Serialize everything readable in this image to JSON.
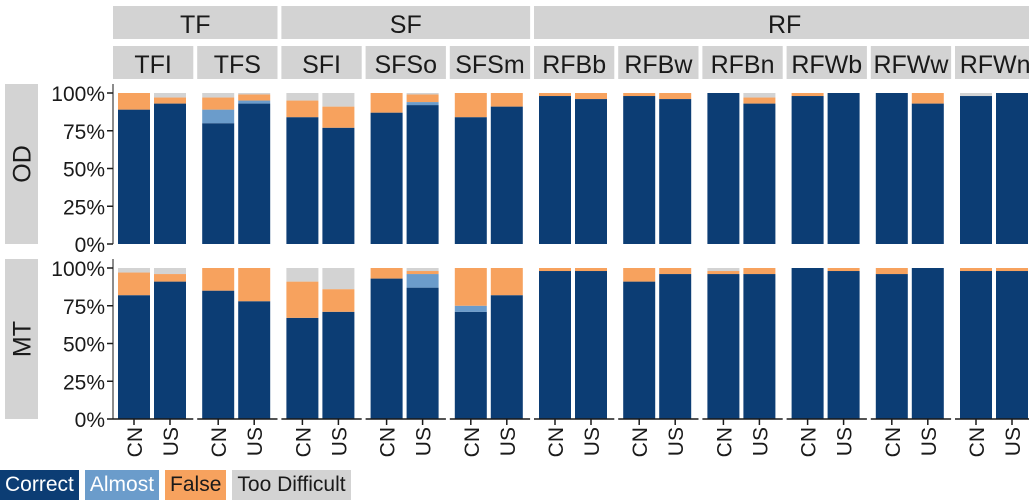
{
  "chart_data": {
    "type": "bar",
    "stacked": true,
    "facet_groups": [
      "TF",
      "SF",
      "RF"
    ],
    "panels": [
      "TFI",
      "TFS",
      "SFI",
      "SFSo",
      "SFSm",
      "RFBb",
      "RFBw",
      "RFBn",
      "RFWb",
      "RFWw",
      "RFWn"
    ],
    "panel_groups": [
      "TF",
      "TF",
      "SF",
      "SF",
      "SF",
      "RF",
      "RF",
      "RF",
      "RF",
      "RF",
      "RF"
    ],
    "rows": [
      "OD",
      "MT"
    ],
    "categories": [
      "CN",
      "US"
    ],
    "y_ticks": [
      "0%",
      "25%",
      "50%",
      "75%",
      "100%"
    ],
    "ylim": [
      0,
      100
    ],
    "series": [
      {
        "name": "Correct",
        "color": "#0c3d74"
      },
      {
        "name": "Almost",
        "color": "#6b9ccb"
      },
      {
        "name": "False",
        "color": "#f7a25e"
      },
      {
        "name": "Too Difficult",
        "color": "#d3d3d3"
      }
    ],
    "values": {
      "OD": {
        "TFI": [
          [
            89,
            0,
            11,
            0
          ],
          [
            93,
            0,
            4,
            3
          ]
        ],
        "TFS": [
          [
            80,
            9,
            8,
            3
          ],
          [
            93,
            2,
            4,
            1
          ]
        ],
        "SFI": [
          [
            84,
            0,
            11,
            5
          ],
          [
            77,
            0,
            14,
            9
          ]
        ],
        "SFSo": [
          [
            87,
            0,
            13,
            0
          ],
          [
            92,
            2,
            5,
            1
          ]
        ],
        "SFSm": [
          [
            84,
            0,
            16,
            0
          ],
          [
            91,
            0,
            9,
            0
          ]
        ],
        "RFBb": [
          [
            98,
            0,
            2,
            0
          ],
          [
            96,
            0,
            4,
            0
          ]
        ],
        "RFBw": [
          [
            98,
            0,
            2,
            0
          ],
          [
            96,
            0,
            4,
            0
          ]
        ],
        "RFBn": [
          [
            100,
            0,
            0,
            0
          ],
          [
            93,
            0,
            4,
            3
          ]
        ],
        "RFWb": [
          [
            98,
            0,
            2,
            0
          ],
          [
            100,
            0,
            0,
            0
          ]
        ],
        "RFWw": [
          [
            100,
            0,
            0,
            0
          ],
          [
            93,
            0,
            7,
            0
          ]
        ],
        "RFWn": [
          [
            98,
            0,
            0,
            2
          ],
          [
            100,
            0,
            0,
            0
          ]
        ]
      },
      "MT": {
        "TFI": [
          [
            82,
            0,
            15,
            3
          ],
          [
            91,
            0,
            5,
            4
          ]
        ],
        "TFS": [
          [
            85,
            0,
            15,
            0
          ],
          [
            78,
            0,
            22,
            0
          ]
        ],
        "SFI": [
          [
            67,
            0,
            24,
            9
          ],
          [
            71,
            0,
            15,
            14
          ]
        ],
        "SFSo": [
          [
            93,
            0,
            7,
            0
          ],
          [
            87,
            9,
            2,
            2
          ]
        ],
        "SFSm": [
          [
            71,
            4,
            25,
            0
          ],
          [
            82,
            0,
            18,
            0
          ]
        ],
        "RFBb": [
          [
            98,
            0,
            2,
            0
          ],
          [
            98,
            0,
            2,
            0
          ]
        ],
        "RFBw": [
          [
            91,
            0,
            9,
            0
          ],
          [
            96,
            0,
            4,
            0
          ]
        ],
        "RFBn": [
          [
            96,
            0,
            2,
            2
          ],
          [
            96,
            0,
            4,
            0
          ]
        ],
        "RFWb": [
          [
            100,
            0,
            0,
            0
          ],
          [
            98,
            0,
            2,
            0
          ]
        ],
        "RFWw": [
          [
            96,
            0,
            4,
            0
          ],
          [
            100,
            0,
            0,
            0
          ]
        ],
        "RFWn": [
          [
            98,
            0,
            2,
            0
          ],
          [
            98,
            0,
            2,
            0
          ]
        ]
      }
    },
    "legend_position": "bottom-left"
  }
}
